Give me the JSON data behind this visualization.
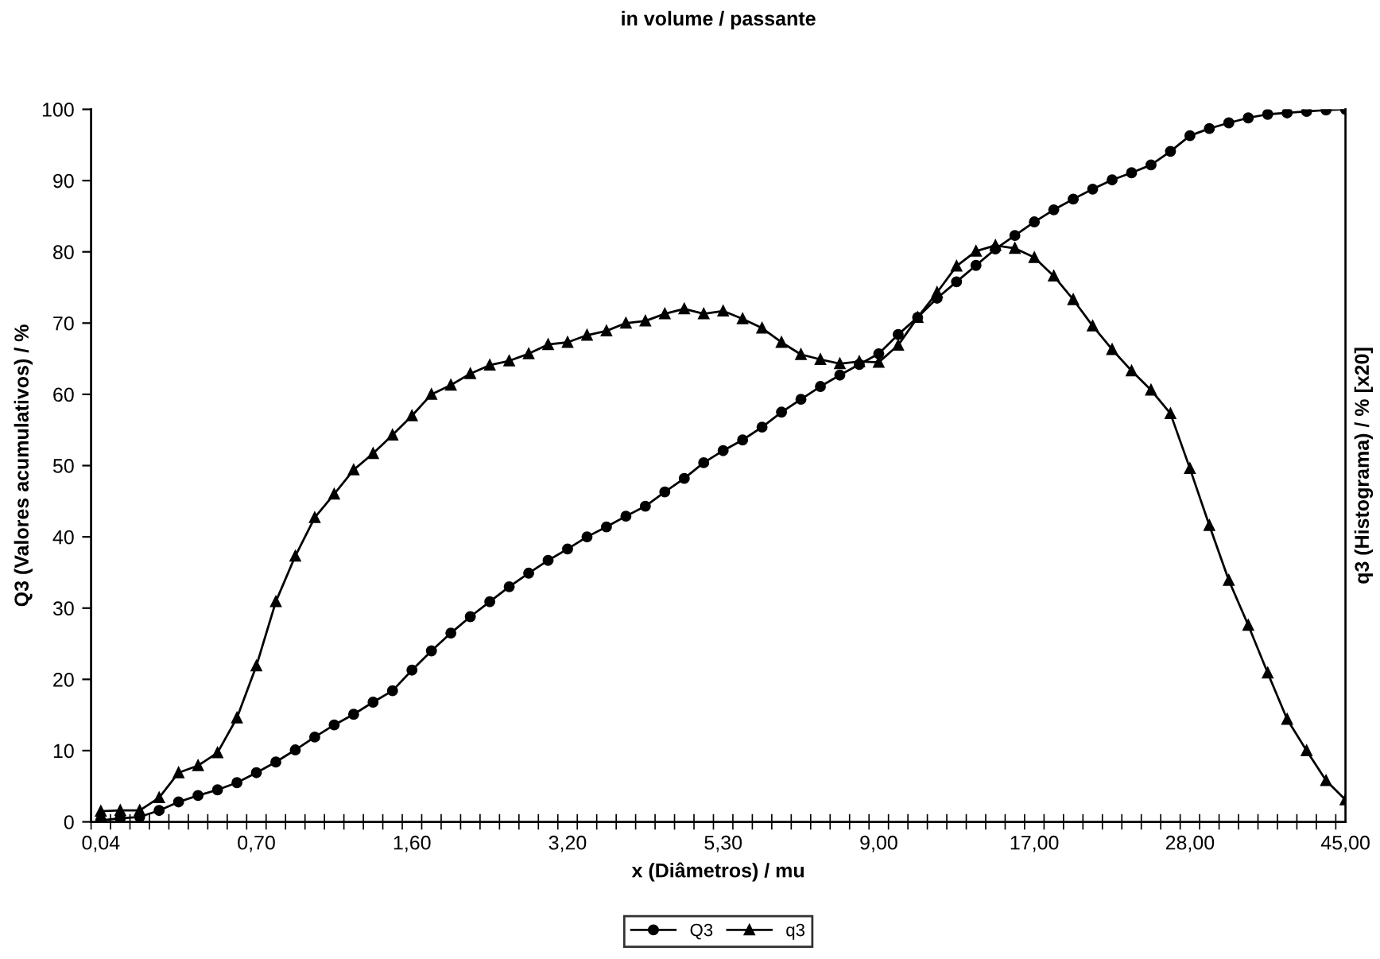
{
  "chart_data": {
    "type": "line",
    "title": "in volume / passante",
    "xlabel": "x (Diâmetros) / mu",
    "ylabel": "Q3 (Valores acumulativos) / %",
    "y2label": "q3 (Histograma) / % [x20]",
    "categories": [
      "0,04",
      null,
      null,
      null,
      null,
      null,
      null,
      null,
      "0,70",
      null,
      null,
      null,
      null,
      null,
      null,
      null,
      "1,60",
      null,
      null,
      null,
      null,
      null,
      null,
      null,
      "3,20",
      null,
      null,
      null,
      null,
      null,
      null,
      null,
      "5,30",
      null,
      null,
      null,
      null,
      null,
      null,
      null,
      "9,00",
      null,
      null,
      null,
      null,
      null,
      null,
      null,
      "17,00",
      null,
      null,
      null,
      null,
      null,
      null,
      null,
      "28,00",
      null,
      null,
      null,
      null,
      null,
      null,
      null,
      "45,00"
    ],
    "series": [
      {
        "name": "Q3",
        "color": "#000000",
        "marker": "circle",
        "values": [
          0.2,
          0.5,
          0.7,
          1.6,
          2.8,
          3.7,
          4.5,
          5.5,
          6.9,
          8.4,
          10.1,
          11.9,
          13.6,
          15.1,
          16.8,
          18.4,
          21.3,
          24.0,
          26.5,
          28.8,
          30.9,
          33.0,
          34.9,
          36.7,
          38.3,
          40.0,
          41.4,
          42.9,
          44.3,
          46.3,
          48.2,
          50.4,
          52.1,
          53.6,
          55.4,
          57.5,
          59.3,
          61.1,
          62.7,
          64.2,
          65.7,
          68.4,
          70.8,
          73.5,
          75.8,
          78.1,
          80.4,
          82.3,
          84.2,
          85.9,
          87.4,
          88.8,
          90.1,
          91.1,
          92.2,
          94.1,
          96.3,
          97.3,
          98.1,
          98.8,
          99.3,
          99.5,
          99.7,
          99.9,
          100
        ]
      },
      {
        "name": "q3",
        "color": "#000000",
        "marker": "triangle",
        "values": [
          1.5,
          1.6,
          1.6,
          3.4,
          6.9,
          7.9,
          9.7,
          14.6,
          21.9,
          30.9,
          37.3,
          42.7,
          46.0,
          49.4,
          51.7,
          54.3,
          57.0,
          60.0,
          61.3,
          62.9,
          64.1,
          64.7,
          65.7,
          67.0,
          67.3,
          68.3,
          68.9,
          70.0,
          70.3,
          71.3,
          72.0,
          71.3,
          71.7,
          70.6,
          69.3,
          67.3,
          65.6,
          64.9,
          64.3,
          64.6,
          64.5,
          66.9,
          70.8,
          74.3,
          78.0,
          80.1,
          80.9,
          80.5,
          79.2,
          76.6,
          73.3,
          69.6,
          66.3,
          63.3,
          60.6,
          57.3,
          49.6,
          41.6,
          33.9,
          27.6,
          20.9,
          14.4,
          10.0,
          5.8,
          3.1
        ]
      }
    ],
    "ylim": [
      0,
      100
    ],
    "yticks": [
      0,
      10,
      20,
      30,
      40,
      50,
      60,
      70,
      80,
      90,
      100
    ],
    "grid": false,
    "legend": "bottom",
    "line_style": "solid"
  }
}
